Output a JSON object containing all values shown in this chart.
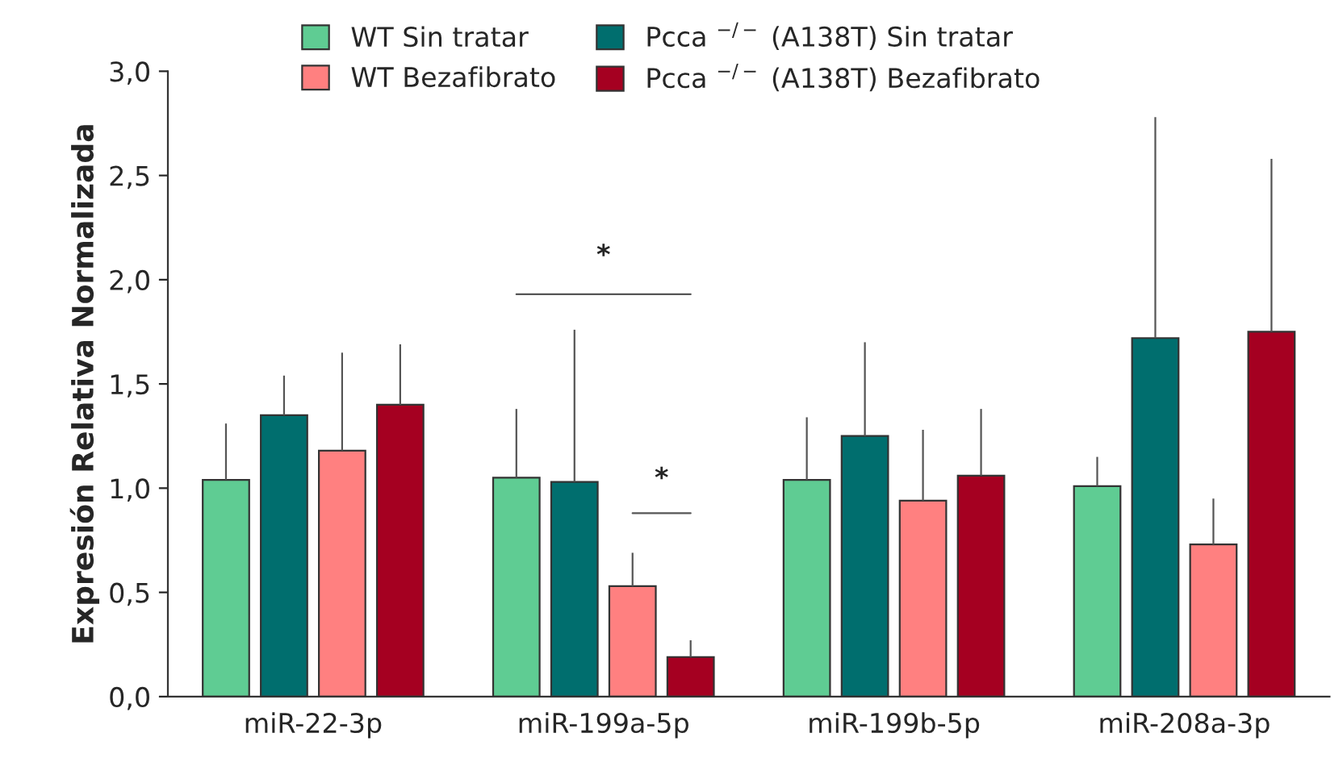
{
  "chart_data": {
    "type": "bar",
    "ylabel": "Expresión Relativa Normalizada",
    "categories": [
      "miR-22-3p",
      "miR-199a-5p",
      "miR-199b-5p",
      "miR-208a-3p"
    ],
    "series": [
      {
        "name": "WT Sin tratar",
        "color": "#5fcc93",
        "values": [
          1.04,
          1.05,
          1.04,
          1.01
        ],
        "errors": [
          [
            1.04,
            1.31
          ],
          [
            1.05,
            1.38
          ],
          [
            1.04,
            1.34
          ],
          [
            1.01,
            1.15
          ]
        ]
      },
      {
        "name": "Pcca $^{−/−}$ (A138T) Sin tratar",
        "color": "#006e6e",
        "values": [
          1.35,
          1.03,
          1.25,
          1.72
        ],
        "errors": [
          [
            1.35,
            1.54
          ],
          [
            1.03,
            1.76
          ],
          [
            1.25,
            1.7
          ],
          [
            1.72,
            2.78
          ]
        ]
      },
      {
        "name": "WT Bezafibrato",
        "color": "#ff8080",
        "values": [
          1.18,
          0.53,
          0.94,
          0.73
        ],
        "errors": [
          [
            1.18,
            1.65
          ],
          [
            0.53,
            0.69
          ],
          [
            0.94,
            1.28
          ],
          [
            0.73,
            0.95
          ]
        ]
      },
      {
        "name": "Pcca $^{−/−}$ (A138T) Bezafibrato",
        "color": "#a50021",
        "values": [
          1.4,
          0.19,
          1.06,
          1.75
        ],
        "errors": [
          [
            1.4,
            1.69
          ],
          [
            0.19,
            0.27
          ],
          [
            1.06,
            1.38
          ],
          [
            1.75,
            2.58
          ]
        ]
      }
    ],
    "ylim": [
      0,
      3
    ],
    "yticks": [
      {
        "value": 0,
        "label": "0,0"
      },
      {
        "value": 0.5,
        "label": "0,5"
      },
      {
        "value": 1,
        "label": "1,0"
      },
      {
        "value": 1.5,
        "label": "1,5"
      },
      {
        "value": 2,
        "label": "2,0"
      },
      {
        "value": 2.5,
        "label": "2,5"
      },
      {
        "value": 3,
        "label": "3,0"
      }
    ],
    "annotations": [
      "*",
      "*"
    ],
    "grid": false,
    "legend": "top"
  }
}
